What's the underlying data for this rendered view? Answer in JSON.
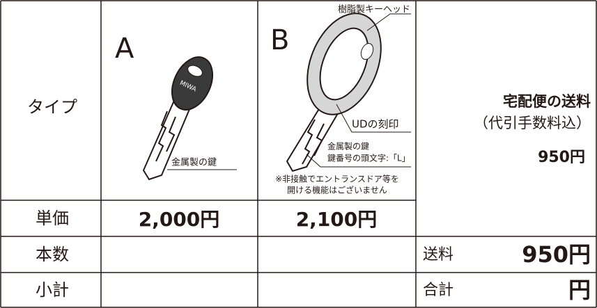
{
  "type_row": {
    "label": "タイプ",
    "options": [
      {
        "letter": "A",
        "head_logo": "MIWA",
        "key_label": "金属製の鍵"
      },
      {
        "letter": "B",
        "head_label": "樹脂製キーヘッド",
        "engraving_label": "UDの刻印",
        "key_label": "金属製の鍵",
        "key_number_label": "鍵番号の頭文字:「L」",
        "notes": [
          "※非接触でエントランスドア等を",
          "開ける機能はございません"
        ]
      }
    ]
  },
  "unit_price_row": {
    "label": "単価",
    "prices": [
      "2,000円",
      "2,100円"
    ]
  },
  "shipping": {
    "title": "宅配便の送料",
    "subtitle": "（代引手数料込）",
    "price": "950円"
  },
  "quantity_row": {
    "label": "本数",
    "fee_label": "送料",
    "fee": "950円"
  },
  "subtotal_row": {
    "label": "小計",
    "total_label": "合計",
    "total": "円"
  }
}
